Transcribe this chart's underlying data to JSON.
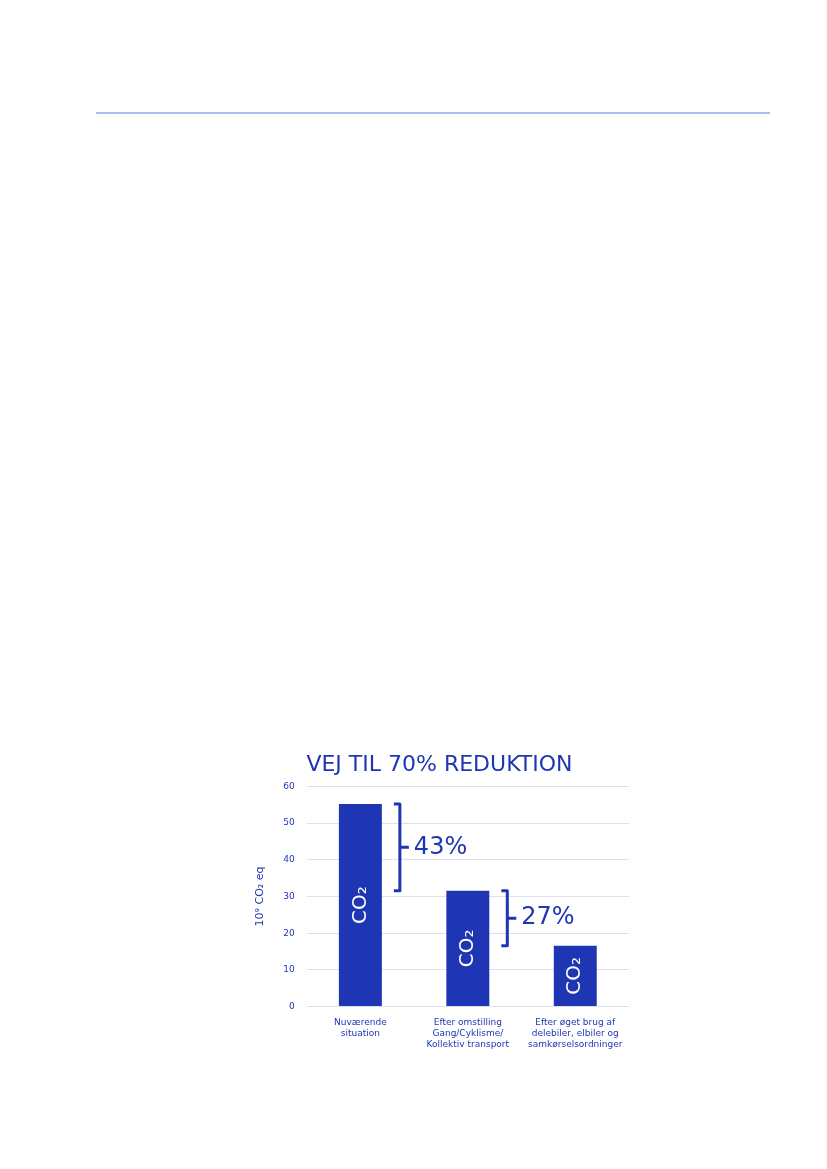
{
  "chart_data": {
    "type": "bar",
    "title": "VEJ TIL 70% REDUKTION",
    "ylabel": "10⁹ CO₂ eq",
    "categories": [
      "Nuværende\nsituation",
      "Efter omstilling\nGang/Cyklisme/\nKollektiv transport",
      "Efter øget brug af\ndelebiler, elbiler og\nsamkørselsordninger"
    ],
    "values": [
      55.2,
      31.6,
      16.6
    ],
    "color": "#1f36b4",
    "ylim": [
      0,
      60
    ],
    "yticks": [
      0,
      10,
      20,
      30,
      40,
      50,
      60
    ],
    "grid": "y",
    "legend": false,
    "annotations": [
      "CO₂",
      "CO₂",
      "CO₂",
      "43%",
      "27%"
    ]
  }
}
